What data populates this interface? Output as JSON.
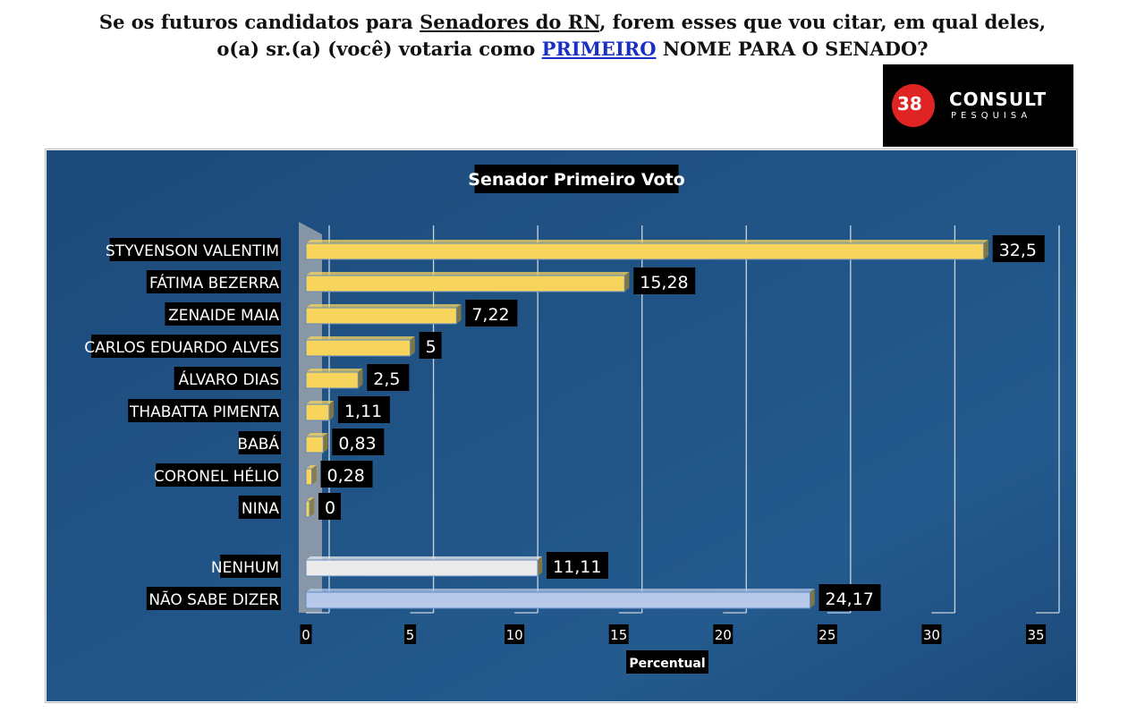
{
  "headline": {
    "line1_before": "Se os futuros candidatos para ",
    "line1_underlined": "Senadores do RN",
    "line1_after": ", forem esses que vou citar, em qual deles,",
    "line2_before": "o(a) sr.(a) (você) votaria como ",
    "line2_highlight": "PRIMEIRO",
    "line2_after": " NOME PARA O SENADO?"
  },
  "logo": {
    "number": "38",
    "brand": "CONSULT",
    "subtitle": "PESQUISA"
  },
  "chart_data": {
    "type": "bar",
    "orientation": "horizontal",
    "title": "Senador Primeiro Voto",
    "xlabel": "Percentual",
    "ylabel": "",
    "xlim": [
      0,
      35
    ],
    "ticks": [
      0,
      5,
      10,
      15,
      20,
      25,
      30,
      35
    ],
    "grid": true,
    "categories": [
      "STYVENSON VALENTIM",
      "FÁTIMA BEZERRA",
      "ZENAIDE MAIA",
      "CARLOS EDUARDO ALVES",
      "ÁLVARO DIAS",
      "THABATTA PIMENTA",
      "BABÁ",
      "CORONEL HÉLIO",
      "NINA",
      "NENHUM",
      "NÃO SABE DIZER"
    ],
    "values": [
      32.5,
      15.28,
      7.22,
      5,
      2.5,
      1.11,
      0.83,
      0.28,
      0,
      11.11,
      24.17
    ],
    "value_labels": [
      "32,5",
      "15,28",
      "7,22",
      "5",
      "2,5",
      "1,11",
      "0,83",
      "0,28",
      "0",
      "11,11",
      "24,17"
    ],
    "bar_colors": [
      "#f7d55c",
      "#f7d55c",
      "#f7d55c",
      "#f7d55c",
      "#f7d55c",
      "#f7d55c",
      "#f7d55c",
      "#f7d55c",
      "#f7d55c",
      "#ebebeb",
      "#b8c9ea"
    ],
    "background_color": "#1c4a7a"
  }
}
